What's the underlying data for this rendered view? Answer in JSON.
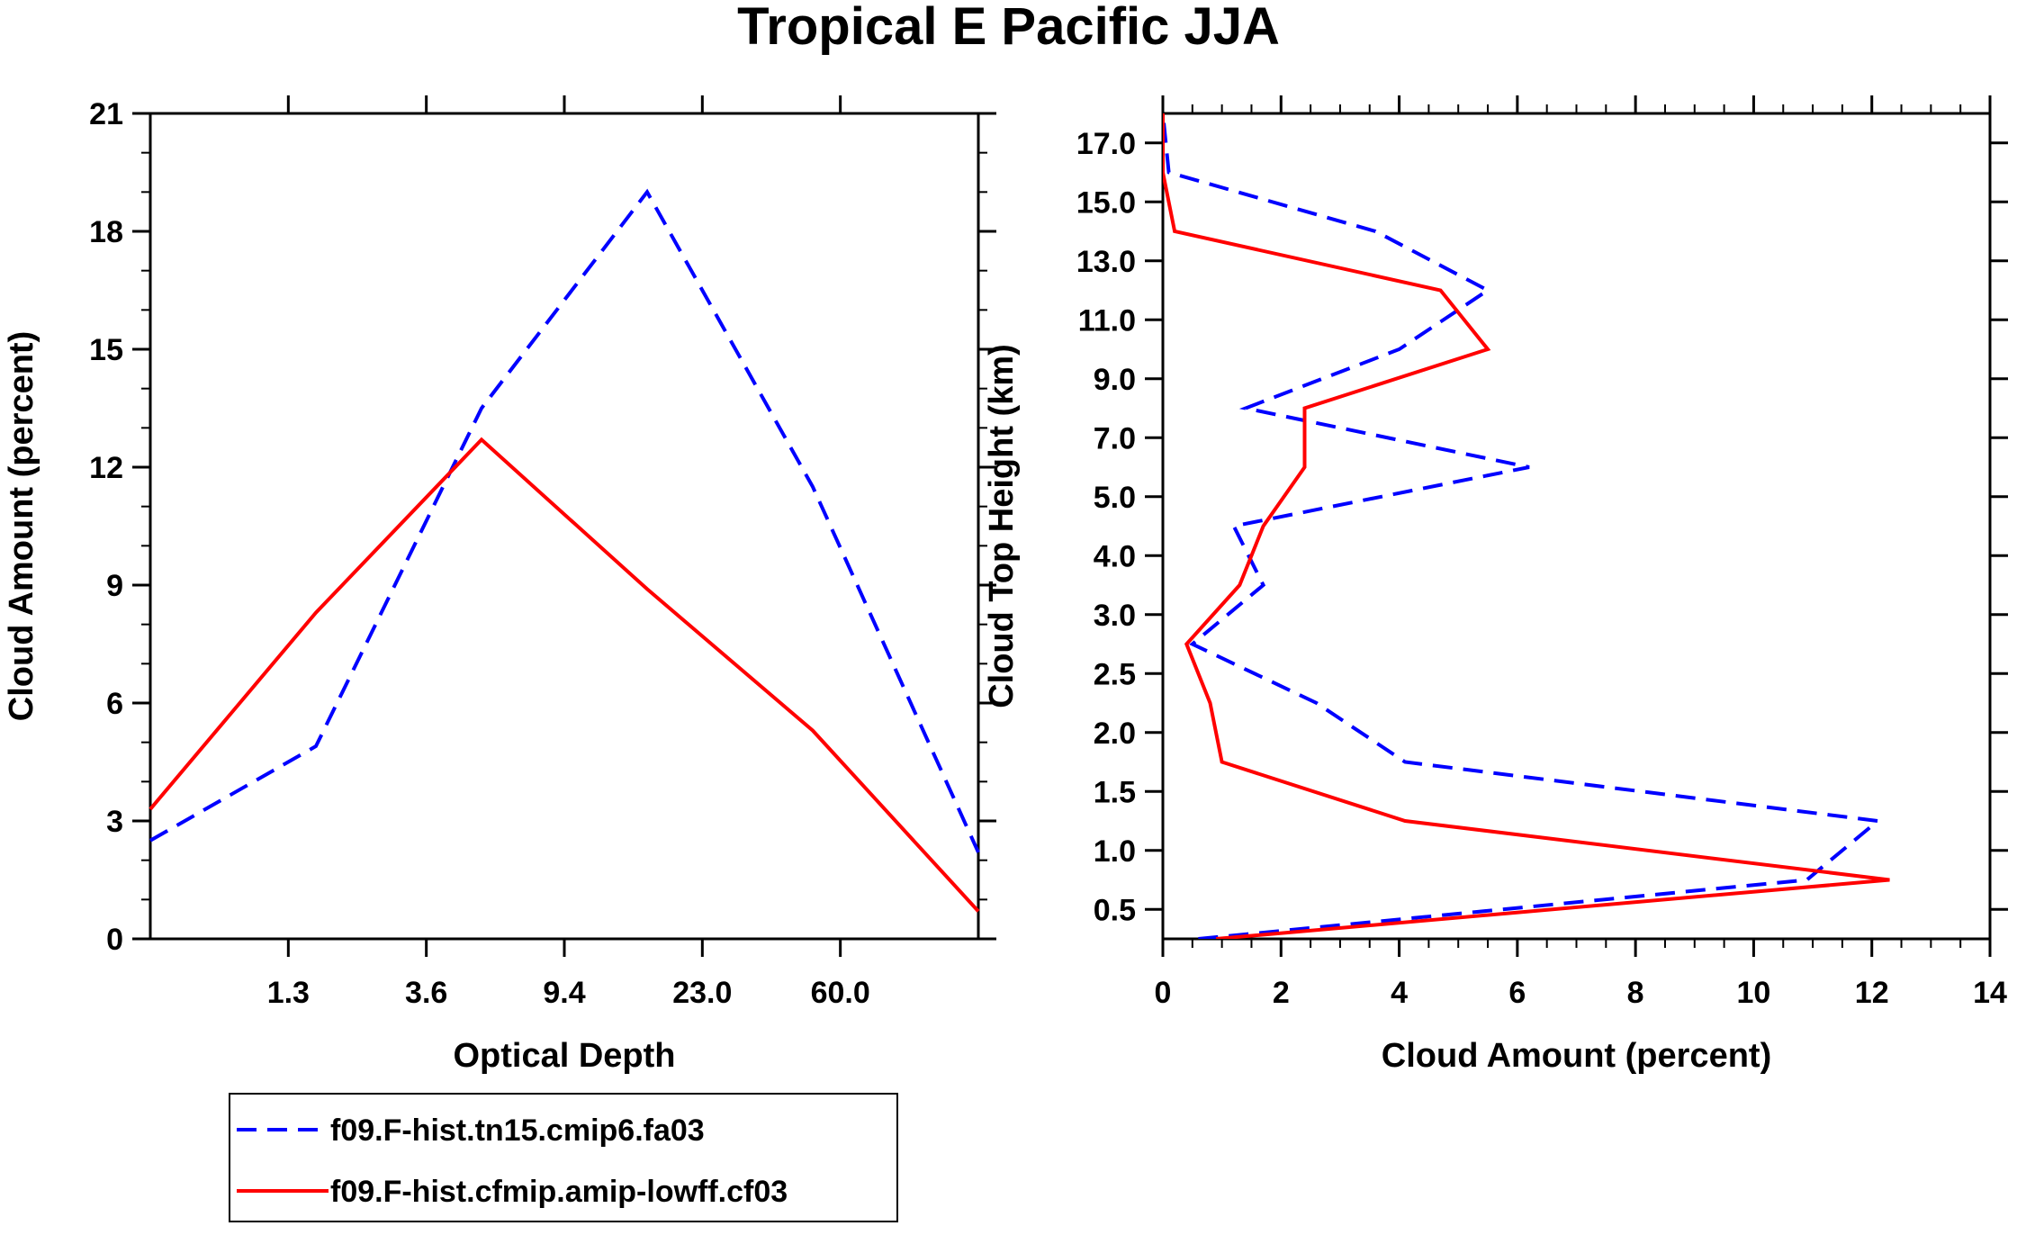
{
  "title": "Tropical E Pacific JJA",
  "legend": [
    {
      "label": "f09.F-hist.tn15.cmip6.fa03",
      "color": "#0000ff",
      "dash": "dashed"
    },
    {
      "label": "f09.F-hist.cfmip.amip-lowff.cf03",
      "color": "#ff0000",
      "dash": "solid"
    }
  ],
  "chart_data": [
    {
      "type": "line",
      "xlabel": "Optical Depth",
      "ylabel": "Cloud Amount (percent)",
      "x_tick_labels": [
        "1.3",
        "3.6",
        "9.4",
        "23.0",
        "60.0"
      ],
      "x_tick_positions": [
        1,
        2,
        3,
        4,
        5
      ],
      "xlim": [
        0,
        6
      ],
      "ylim": [
        0,
        21
      ],
      "y_ticks": [
        0,
        3,
        6,
        9,
        12,
        15,
        18,
        21
      ],
      "y_tick_labels": [
        "0",
        "3",
        "6",
        "9",
        "12",
        "15",
        "18",
        "21"
      ],
      "x": [
        0,
        1.2,
        2.4,
        3.6,
        4.8,
        6.0
      ],
      "series": [
        {
          "name": "f09.F-hist.tn15.cmip6.fa03",
          "values": [
            2.5,
            4.9,
            13.5,
            19.0,
            11.5,
            2.2
          ]
        },
        {
          "name": "f09.F-hist.cfmip.amip-lowff.cf03",
          "values": [
            3.3,
            8.3,
            12.7,
            8.9,
            5.3,
            0.7
          ]
        }
      ]
    },
    {
      "type": "line",
      "xlabel": "Cloud Amount (percent)",
      "ylabel": "Cloud Top Height (km)",
      "xlim": [
        0,
        14
      ],
      "x_ticks": [
        0,
        2,
        4,
        6,
        8,
        10,
        12,
        14
      ],
      "x_tick_labels": [
        "0",
        "2",
        "4",
        "6",
        "8",
        "10",
        "12",
        "14"
      ],
      "y_tick_labels": [
        "0.5",
        "1.0",
        "1.5",
        "2.0",
        "2.5",
        "3.0",
        "4.0",
        "5.0",
        "7.0",
        "9.0",
        "11.0",
        "13.0",
        "15.0",
        "17.0"
      ],
      "levels": [
        "0.25",
        "0.75",
        "1.25",
        "1.75",
        "2.25",
        "2.75",
        "3.5",
        "4.5",
        "6.0",
        "8.0",
        "10.0",
        "12.0",
        "14.0",
        "16.0",
        "18.0"
      ],
      "series": [
        {
          "name": "f09.F-hist.tn15.cmip6.fa03",
          "values": [
            0.6,
            10.9,
            12.1,
            4.1,
            2.6,
            0.5,
            1.7,
            1.2,
            6.2,
            1.4,
            4.0,
            5.5,
            3.6,
            0.1,
            0.0
          ]
        },
        {
          "name": "f09.F-hist.cfmip.amip-lowff.cf03",
          "values": [
            0.9,
            12.3,
            4.1,
            1.0,
            0.8,
            0.4,
            1.3,
            1.7,
            2.4,
            2.4,
            5.5,
            4.7,
            0.2,
            0.0,
            0.0
          ]
        }
      ]
    }
  ]
}
